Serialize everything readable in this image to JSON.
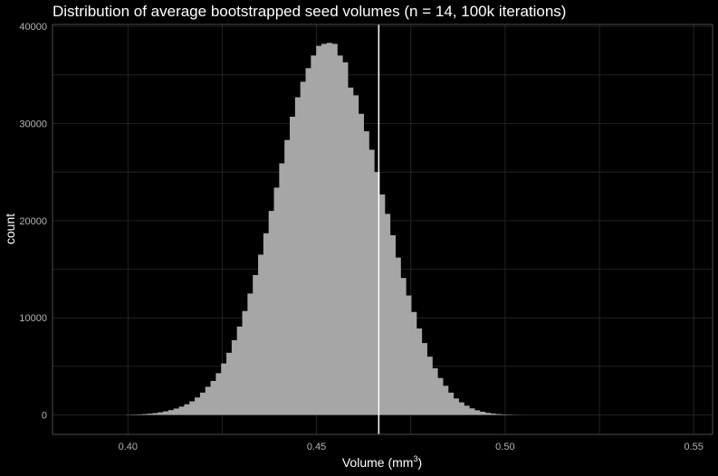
{
  "chart_data": {
    "type": "histogram",
    "title": "Distribution of average bootstrapped seed volumes (n = 14, 100k iterations)",
    "xlabel": "Volume (mm",
    "xlabel_sup": "3",
    "xlabel_close": ")",
    "ylabel": "count",
    "xlim": [
      0.38,
      0.555
    ],
    "ylim": [
      -2000,
      40200
    ],
    "x_ticks": [
      0.4,
      0.45,
      0.5,
      0.55
    ],
    "x_tick_labels": [
      "0.40",
      "0.45",
      "0.50",
      "0.55"
    ],
    "y_ticks": [
      0,
      10000,
      20000,
      30000,
      40000
    ],
    "y_tick_labels": [
      "0",
      "10000",
      "20000",
      "30000",
      "40000"
    ],
    "grid": true,
    "bin_width": 0.0014,
    "bin_start": 0.3995,
    "bar_counts": [
      20,
      40,
      60,
      90,
      130,
      190,
      270,
      370,
      500,
      660,
      860,
      1100,
      1400,
      1800,
      2300,
      2900,
      3500,
      4300,
      5300,
      6400,
      7700,
      9100,
      10700,
      12500,
      14400,
      16500,
      18700,
      21000,
      23400,
      25900,
      28300,
      30700,
      32700,
      34300,
      35700,
      37000,
      38000,
      38200,
      38300,
      38200,
      37000,
      36300,
      33700,
      32900,
      31000,
      29200,
      27300,
      25000,
      22700,
      20700,
      18500,
      16200,
      14100,
      12300,
      10600,
      8900,
      7400,
      6000,
      4800,
      3800,
      3000,
      2300,
      1700,
      1300,
      950,
      680,
      480,
      330,
      220,
      140,
      90,
      55,
      30,
      15,
      8,
      4
    ],
    "vline_x": 0.4665,
    "colors": {
      "background": "#000000",
      "grid": "#2a2a2a",
      "bars": "#a6a6a6",
      "vline": "#ffffff",
      "tick_text": "#b4b4b4",
      "text": "#ffffff",
      "border": "#4d4d4d"
    }
  }
}
